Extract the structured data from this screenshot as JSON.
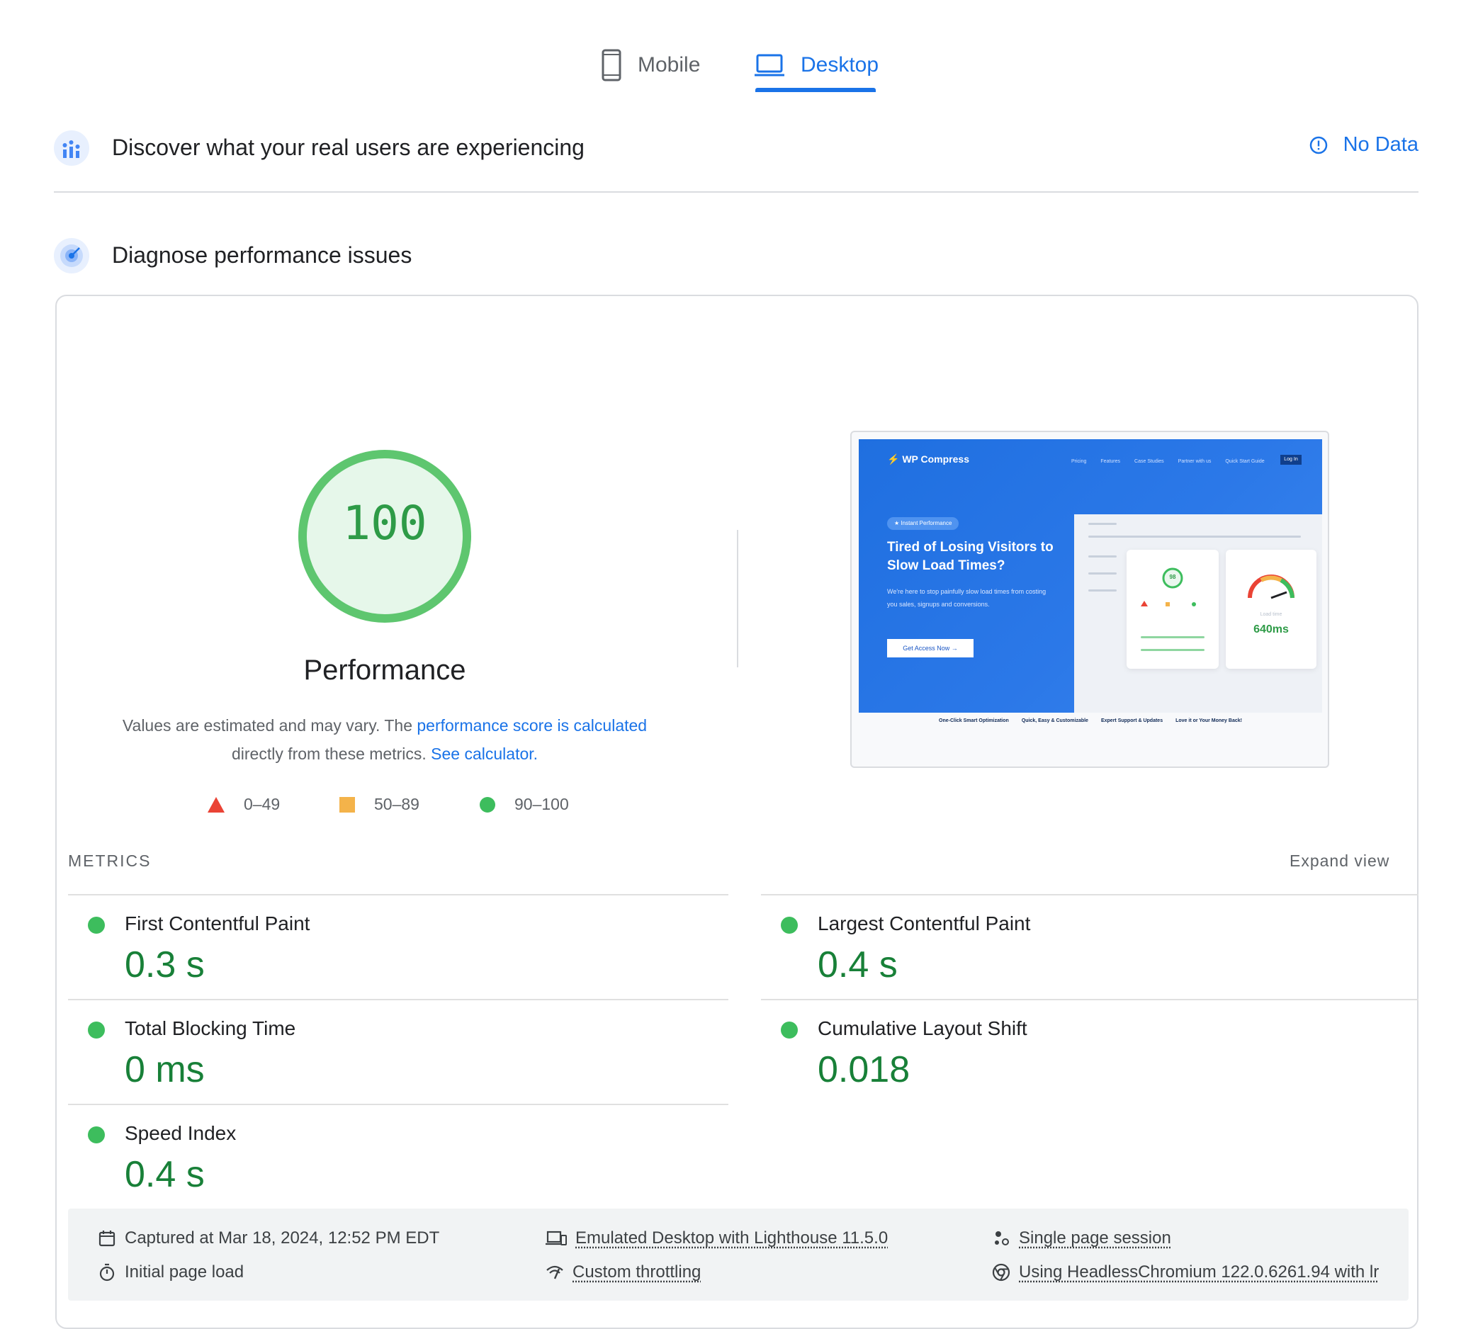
{
  "tabs": {
    "mobile": "Mobile",
    "desktop": "Desktop",
    "active": "desktop"
  },
  "field_data": {
    "title": "Discover what your real users are experiencing",
    "status": "No Data"
  },
  "diagnose": {
    "title": "Diagnose performance issues"
  },
  "performance": {
    "score": "100",
    "score_value": 100,
    "title": "Performance",
    "desc_before": "Values are estimated and may vary. The ",
    "desc_link": "performance score is calculated",
    "desc_mid": " directly from these metrics. ",
    "desc_link2": "See calculator.",
    "legend": [
      {
        "range": "0–49",
        "color": "#ea4335"
      },
      {
        "range": "50–89",
        "color": "#f4b34a"
      },
      {
        "range": "90–100",
        "color": "#3dbd5d"
      }
    ]
  },
  "thumbnail": {
    "brand": "WP Compress",
    "nav": [
      "Pricing",
      "Features",
      "Case Studies",
      "Partner with us",
      "Quick Start Guide"
    ],
    "login": "Log In",
    "badge": "★ Instant Performance",
    "headline": "Tired of Losing Visitors to Slow Load Times?",
    "body": "We're here to stop painfully slow load times from costing you sales, signups and conversions.",
    "cta": "Get Access Now →",
    "mini_score": "98",
    "load_label": "Load time",
    "load_value": "640ms",
    "footer": [
      "One-Click Smart Optimization",
      "Quick, Easy & Customizable",
      "Expert Support & Updates",
      "Love it or Your Money Back!"
    ]
  },
  "metrics": {
    "label": "METRICS",
    "expand": "Expand view",
    "items": [
      {
        "name": "First Contentful Paint",
        "value": "0.3 s"
      },
      {
        "name": "Largest Contentful Paint",
        "value": "0.4 s"
      },
      {
        "name": "Total Blocking Time",
        "value": "0 ms"
      },
      {
        "name": "Cumulative Layout Shift",
        "value": "0.018"
      },
      {
        "name": "Speed Index",
        "value": "0.4 s"
      }
    ]
  },
  "info": {
    "captured": "Captured at Mar 18, 2024, 12:52 PM EDT",
    "load": "Initial page load",
    "emulated": "Emulated Desktop with Lighthouse 11.5.0",
    "throttling": "Custom throttling",
    "session": "Single page session",
    "browser": "Using HeadlessChromium 122.0.6261.94 with lr"
  },
  "colors": {
    "accent": "#1a73e8",
    "good": "#3dbd5d",
    "good_text": "#188038"
  }
}
